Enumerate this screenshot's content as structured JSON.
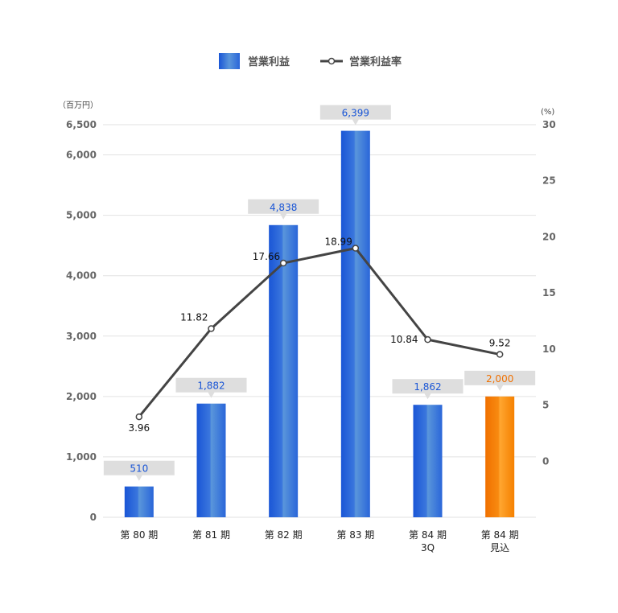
{
  "chart_data": {
    "type": "bar",
    "categories": [
      [
        "第 80 期"
      ],
      [
        "第 81 期"
      ],
      [
        "第 82 期"
      ],
      [
        "第 83 期"
      ],
      [
        "第 84 期",
        "3Q"
      ],
      [
        "第 84 期",
        "見込"
      ]
    ],
    "series": [
      {
        "name": "営業利益",
        "kind": "bar",
        "axis": "left",
        "values": [
          510,
          1882,
          4838,
          6399,
          1862,
          2000
        ],
        "labels": [
          "510",
          "1,882",
          "4,838",
          "6,399",
          "1,862",
          "2,000"
        ],
        "highlight_index": 5
      },
      {
        "name": "営業利益率",
        "kind": "line",
        "axis": "right",
        "values": [
          3.96,
          11.82,
          17.66,
          18.99,
          10.84,
          9.52
        ],
        "labels": [
          "3.96",
          "11.82",
          "17.66",
          "18.99",
          "10.84",
          "9.52"
        ]
      }
    ],
    "y_left": {
      "unit": "（百万円）",
      "ticks": [
        "0",
        "1,000",
        "2,000",
        "3,000",
        "4,000",
        "5,000",
        "6,000",
        "6,500"
      ],
      "tick_values": [
        0,
        1000,
        2000,
        3000,
        4000,
        5000,
        6000,
        6500
      ],
      "ylim": [
        0,
        6500
      ]
    },
    "y_right": {
      "unit": "(%)",
      "ticks": [
        "0",
        "5",
        "10",
        "15",
        "20",
        "25",
        "30"
      ],
      "tick_values": [
        0,
        5,
        10,
        15,
        20,
        25,
        30
      ],
      "ylim": [
        -5,
        30
      ]
    },
    "grid": true,
    "legend_position": "top-center",
    "colors": {
      "bar_blue_dark": "#1a56d6",
      "bar_blue_light": "#5a96db",
      "bar_orange_dark": "#f07000",
      "bar_orange_light": "#ff9a1a",
      "line": "#444444",
      "label_blue": "#1a56d6",
      "label_orange": "#f07000",
      "callout_bg": "#dedede",
      "grid": "#e2e2e2"
    }
  }
}
